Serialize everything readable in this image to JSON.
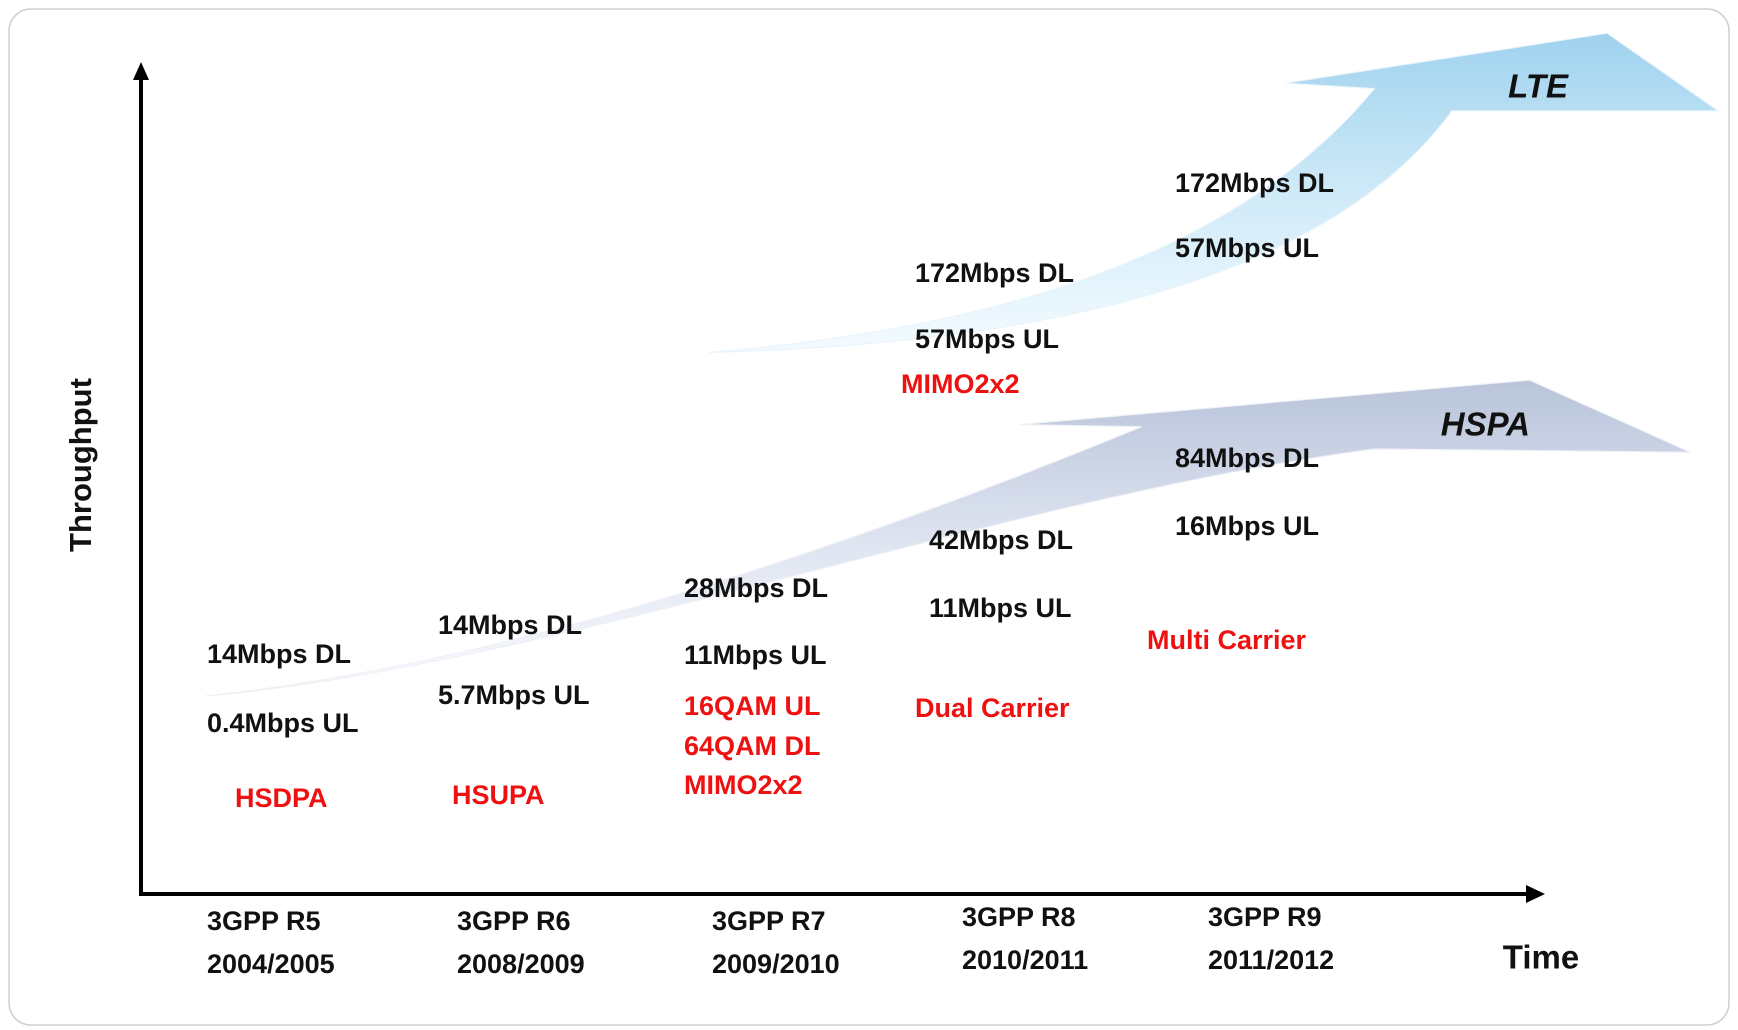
{
  "axes": {
    "y_label": "Throughput",
    "x_label": "Time"
  },
  "arrows": [
    {
      "label": "LTE"
    },
    {
      "label": "HSPA"
    }
  ],
  "releases": [
    {
      "name": "3GPP R5",
      "years": "2004/2005"
    },
    {
      "name": "3GPP R6",
      "years": "2008/2009"
    },
    {
      "name": "3GPP R7",
      "years": "2009/2010"
    },
    {
      "name": "3GPP R8",
      "years": "2010/2011"
    },
    {
      "name": "3GPP R9",
      "years": "2011/2012"
    }
  ],
  "hspa_columns": [
    {
      "dl": "14Mbps DL",
      "ul": "0.4Mbps UL",
      "features": [
        "HSDPA"
      ]
    },
    {
      "dl": "14Mbps DL",
      "ul": "5.7Mbps UL",
      "features": [
        "HSUPA"
      ]
    },
    {
      "dl": "28Mbps DL",
      "ul": "11Mbps UL",
      "features": [
        "16QAM UL",
        "64QAM DL",
        "MIMO2x2"
      ]
    },
    {
      "dl": "42Mbps DL",
      "ul": "11Mbps UL",
      "features": [
        "Dual Carrier"
      ]
    },
    {
      "dl": "84Mbps DL",
      "ul": "16Mbps UL",
      "features": [
        "Multi Carrier"
      ]
    }
  ],
  "lte_columns": [
    {
      "dl": "172Mbps DL",
      "ul": "57Mbps UL",
      "features": [
        "MIMO2x2"
      ]
    },
    {
      "dl": "172Mbps DL",
      "ul": "57Mbps UL"
    }
  ]
}
